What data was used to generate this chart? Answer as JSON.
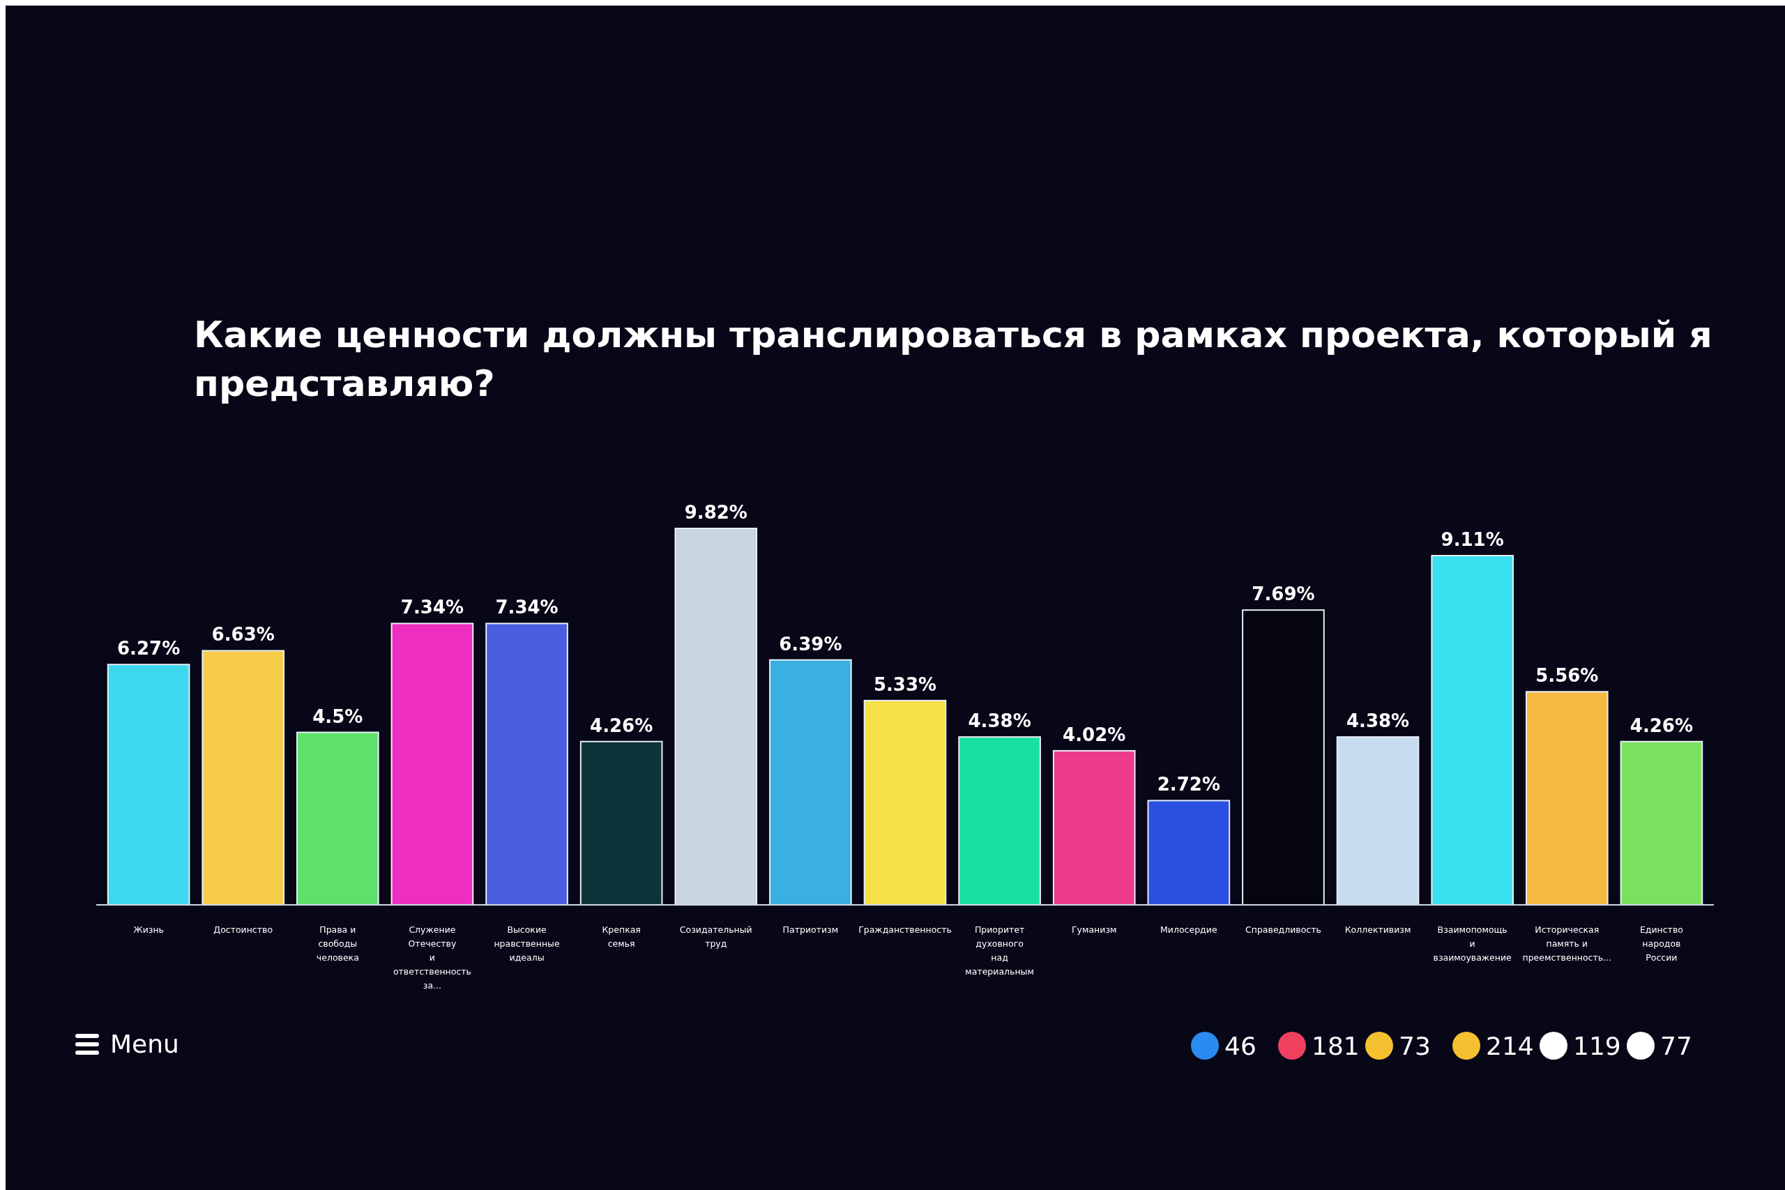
{
  "chart_data": {
    "type": "bar",
    "title": "Какие ценности должны транслироваться в рамках проекта, который я представляю?",
    "categories": [
      "Жизнь",
      "Достоинство",
      "Права и свободы человека",
      "Служение Отечеству и ответственность за...",
      "Высокие нравственные идеалы",
      "Крепкая семья",
      "Созидательный труд",
      "Патриотизм",
      "Гражданственность",
      "Приоритет духовного над материальным",
      "Гуманизм",
      "Милосердие",
      "Справедливость",
      "Коллективизм",
      "Взаимопомощь и взаимоуважение",
      "Историческая память и преемственность...",
      "Единство народов России"
    ],
    "values": [
      6.27,
      6.63,
      4.5,
      7.34,
      7.34,
      4.26,
      9.82,
      6.39,
      5.33,
      4.38,
      4.02,
      2.72,
      7.69,
      4.38,
      9.11,
      5.56,
      4.26
    ],
    "value_labels": [
      "6.27%",
      "6.63%",
      "4.5%",
      "7.34%",
      "7.34%",
      "4.26%",
      "9.82%",
      "6.39%",
      "5.33%",
      "4.38%",
      "4.02%",
      "2.72%",
      "7.69%",
      "4.38%",
      "9.11%",
      "5.56%",
      "4.26%"
    ],
    "colors": [
      "#3ed8ee",
      "#f7cc4a",
      "#5ee06a",
      "#ee2ec0",
      "#4a5ee0",
      "#0d3438",
      "#c8d4e0",
      "#3ab0e0",
      "#f5e04a",
      "#18e0a0",
      "#ee3a8a",
      "#2a50e0",
      "#05050f",
      "#c8dcf0",
      "#3ae0f0",
      "#f5b840",
      "#7ae060"
    ],
    "annotations": [
      "Menu",
      "46",
      "181",
      "73",
      "214",
      "119",
      "77"
    ]
  }
}
